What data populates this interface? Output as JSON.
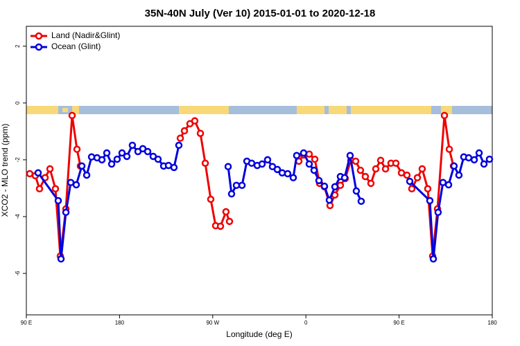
{
  "chart_data": {
    "type": "line",
    "title": "35N-40N July (Ver 10)   2015-01-01 to 2020-12-18",
    "xlabel": "Longitude (deg E)",
    "ylabel": "XCO2 - MLO trend (ppm)",
    "xlim": [
      90,
      540
    ],
    "xticks": [
      {
        "value": 90,
        "label": "90 E"
      },
      180,
      {
        "value": 270,
        "label": "90 W"
      },
      {
        "value": 360,
        "label": "0"
      },
      {
        "value": 450,
        "label": "90 E"
      },
      {
        "value": 540,
        "label": "180"
      }
    ],
    "ylim": [
      -7.46,
      2.7
    ],
    "yticks": [
      2,
      0,
      -2,
      -4,
      -6
    ],
    "legend": "top-left",
    "series": [
      {
        "name": "Land (Nadir&Glint)",
        "color": "#ee0000",
        "x": [
          93.3,
          98.7,
          102.7,
          108.1,
          112.8,
          118.1,
          122.8,
          128.2,
          134.2,
          138.9,
          142.2,
          null,
          238.7,
          242.7,
          248.0,
          252.7,
          258.1,
          262.8,
          268.1,
          272.8,
          277.5,
          282.8,
          286.2,
          null,
          353.2,
          357.8,
          363.2,
          368.6,
          373.2,
          377.9,
          383.3,
          388.0,
          393.3,
          398.0,
          403.4,
          408.1,
          412.7,
          417.4,
          422.8,
          427.5,
          432.2,
          436.9,
          442.2,
          446.9,
          452.3,
          457.6,
          462.3,
          467.7,
          472.3,
          477.7,
          482.4,
          487.1,
          493.8,
          498.5,
          502.5
        ],
        "values": [
          -2.49,
          -2.56,
          -3.02,
          -2.63,
          -2.32,
          -3.02,
          -5.39,
          -3.73,
          -0.44,
          -1.63,
          -2.22,
          null,
          -1.24,
          -0.98,
          -0.73,
          -0.63,
          -1.07,
          -2.12,
          -3.39,
          -4.32,
          -4.34,
          -3.83,
          -4.17,
          null,
          -2.05,
          -1.83,
          -1.8,
          -1.98,
          -2.83,
          -2.95,
          -3.61,
          -3.24,
          -2.9,
          -2.66,
          -2.02,
          -2.05,
          -2.37,
          -2.59,
          -2.83,
          -2.32,
          -2.02,
          -2.32,
          -2.12,
          -2.12,
          -2.46,
          -2.54,
          -3.02,
          -2.63,
          -2.32,
          -3.02,
          -5.39,
          -3.73,
          -0.44,
          -1.63,
          -2.22
        ]
      },
      {
        "name": "Ocean (Glint)",
        "color": "#0000dd",
        "x": [
          101.4,
          120.8,
          123.5,
          128.2,
          132.9,
          138.2,
          143.6,
          148.3,
          153.0,
          158.3,
          163.0,
          167.7,
          172.4,
          177.7,
          182.4,
          187.1,
          192.4,
          197.8,
          202.5,
          207.2,
          212.5,
          217.2,
          222.6,
          227.3,
          232.6,
          237.3,
          null,
          284.9,
          288.2,
          292.9,
          298.3,
          303.0,
          307.6,
          313.0,
          317.7,
          323.0,
          327.7,
          332.4,
          337.1,
          342.4,
          347.8,
          351.1,
          357.8,
          363.2,
          367.9,
          372.6,
          377.9,
          382.6,
          388.0,
          393.3,
          397.4,
          402.7,
          408.7,
          413.4,
          null,
          460.3,
          479.7,
          483.1,
          487.7,
          492.4,
          497.8,
          503.1,
          507.8,
          512.5,
          517.2,
          522.6,
          527.3,
          532.0,
          537.3
        ],
        "values": [
          -2.46,
          -3.44,
          -5.49,
          -3.85,
          -2.8,
          -2.88,
          -2.22,
          -2.54,
          -1.9,
          -1.93,
          -2.0,
          -1.76,
          -2.15,
          -1.98,
          -1.76,
          -1.88,
          -1.49,
          -1.71,
          -1.61,
          -1.71,
          -1.88,
          -1.98,
          -2.22,
          -2.2,
          -2.27,
          -1.49,
          null,
          -2.24,
          -3.2,
          -2.9,
          -2.9,
          -2.05,
          -2.12,
          -2.2,
          -2.15,
          -2.0,
          -2.24,
          -2.34,
          -2.46,
          -2.49,
          -2.63,
          -1.85,
          -1.76,
          -2.15,
          -2.37,
          -2.73,
          -2.93,
          -3.42,
          -2.95,
          -2.59,
          -2.63,
          -1.85,
          -3.1,
          -3.46,
          null,
          -2.76,
          -3.44,
          -5.49,
          -3.85,
          -2.8,
          -2.88,
          -2.22,
          -2.54,
          -1.9,
          -1.93,
          -2.0,
          -1.76,
          -2.15,
          -1.98
        ]
      }
    ]
  }
}
